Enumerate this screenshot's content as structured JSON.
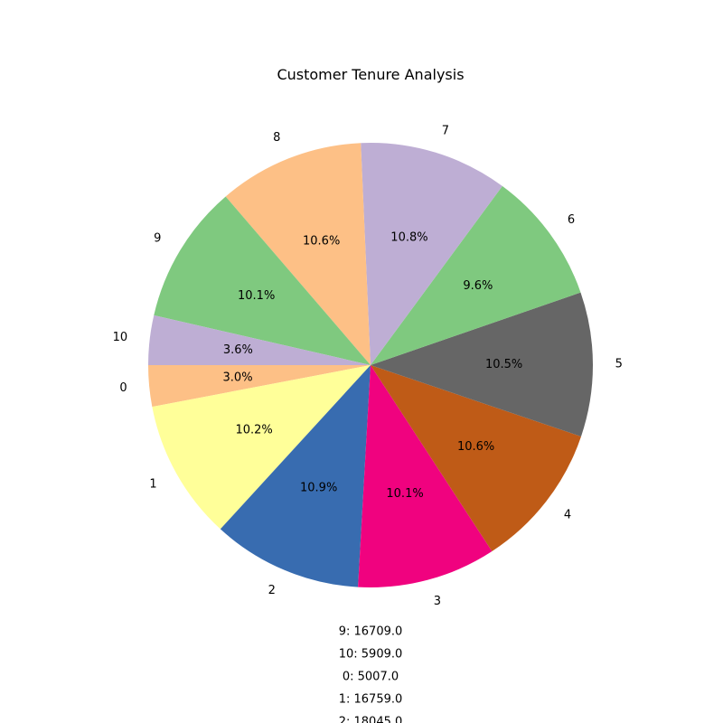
{
  "chart_data": {
    "type": "pie",
    "title": "Customer Tenure Analysis",
    "start_angle_deg": 180,
    "direction": "counterclockwise",
    "slices": [
      {
        "label": "0",
        "pct": 3.0,
        "pct_label": "3.0%",
        "color": "#fdc086"
      },
      {
        "label": "1",
        "pct": 10.2,
        "pct_label": "10.2%",
        "color": "#ffff99"
      },
      {
        "label": "2",
        "pct": 10.9,
        "pct_label": "10.9%",
        "color": "#386cb0"
      },
      {
        "label": "3",
        "pct": 10.1,
        "pct_label": "10.1%",
        "color": "#f0027f"
      },
      {
        "label": "4",
        "pct": 10.6,
        "pct_label": "10.6%",
        "color": "#bf5b17"
      },
      {
        "label": "5",
        "pct": 10.5,
        "pct_label": "10.5%",
        "color": "#666666"
      },
      {
        "label": "6",
        "pct": 9.6,
        "pct_label": "9.6%",
        "color": "#7fc97f"
      },
      {
        "label": "7",
        "pct": 10.8,
        "pct_label": "10.8%",
        "color": "#beaed4"
      },
      {
        "label": "8",
        "pct": 10.6,
        "pct_label": "10.6%",
        "color": "#fdc086"
      },
      {
        "label": "9",
        "pct": 10.1,
        "pct_label": "10.1%",
        "color": "#7fc97f"
      },
      {
        "label": "10",
        "pct": 3.6,
        "pct_label": "3.6%",
        "color": "#beaed4"
      }
    ],
    "annotations": [
      "9: 16709.0",
      "10: 5909.0",
      "0: 5007.0",
      "1: 16759.0",
      "2: 18045.0"
    ]
  }
}
